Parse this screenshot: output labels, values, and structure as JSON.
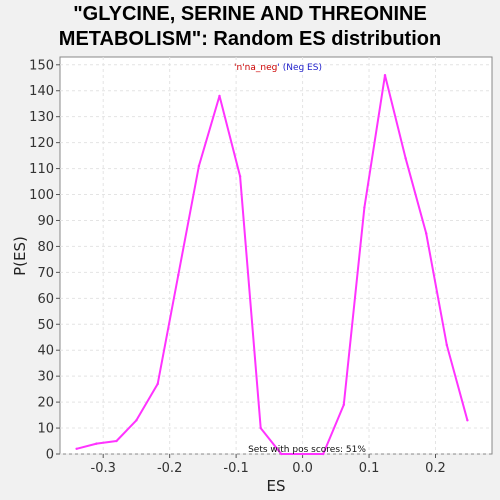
{
  "chart_data": {
    "type": "line",
    "title_lines": [
      "\"GLYCINE, SERINE AND THREONINE",
      "METABOLISM\": Random ES distribution"
    ],
    "xlabel": "ES",
    "ylabel": "P(ES)",
    "xlim": [
      -0.365,
      0.285
    ],
    "ylim": [
      0,
      153
    ],
    "xticks": [
      -0.3,
      -0.2,
      -0.1,
      0.0,
      0.1,
      0.2
    ],
    "xtick_labels": [
      "-0.3",
      "-0.2",
      "-0.1",
      "0.0",
      "0.1",
      "0.2"
    ],
    "yticks": [
      0,
      10,
      20,
      30,
      40,
      50,
      60,
      70,
      80,
      90,
      100,
      110,
      120,
      130,
      140,
      150
    ],
    "grid": true,
    "legend": {
      "prefix": "'",
      "colored_text": "n'na_neg",
      "suffix": "' (Neg ES)",
      "prefix_color": "#cc0000",
      "colored_color": "#cc0000",
      "suffix_color": "#2222cc"
    },
    "annotation": "Sets with pos scores: 51%",
    "series": [
      {
        "color": "#ff33ff",
        "x": [
          -0.34,
          -0.31,
          -0.28,
          -0.25,
          -0.218,
          -0.187,
          -0.156,
          -0.125,
          -0.094,
          -0.063,
          -0.032,
          0.0,
          0.031,
          0.062,
          0.093,
          0.124,
          0.155,
          0.186,
          0.217,
          0.248
        ],
        "y": [
          2,
          4,
          5,
          13,
          27,
          69,
          111,
          138,
          107,
          10,
          0,
          0,
          0,
          19,
          95,
          146,
          114,
          85,
          42,
          13
        ]
      }
    ]
  }
}
